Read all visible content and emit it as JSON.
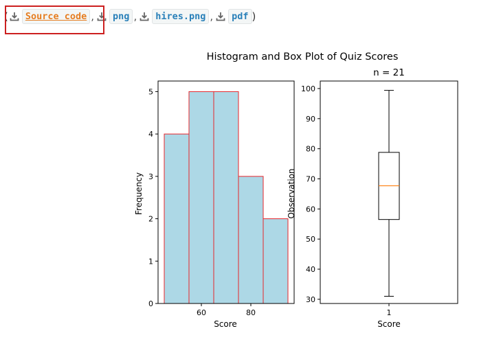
{
  "downloads": {
    "open_paren": "(",
    "close_paren": ")",
    "separator": ",",
    "icon": "download-icon",
    "items": [
      {
        "label": "Source code",
        "active": true
      },
      {
        "label": "png"
      },
      {
        "label": "hires.png"
      },
      {
        "label": "pdf"
      }
    ]
  },
  "colors": {
    "link": "#2980b9",
    "link_active": "#e67e22",
    "highlight_box": "#cc1f1f",
    "hist_fill": "#add8e6",
    "hist_edge": "#e8262b",
    "median": "#ff7f0e"
  },
  "chart_data": [
    {
      "type": "bar",
      "suptitle": "Histogram and Box Plot of Quiz Scores",
      "title": "",
      "xlabel": "Score",
      "ylabel": "Frequency",
      "bins": [
        [
          45,
          55
        ],
        [
          55,
          65
        ],
        [
          65,
          75
        ],
        [
          75,
          85
        ],
        [
          85,
          95
        ]
      ],
      "values": [
        4,
        5,
        5,
        3,
        2
      ],
      "xticks": [
        60,
        80
      ],
      "yticks": [
        0,
        1,
        2,
        3,
        4,
        5
      ],
      "xlim": [
        42.5,
        97.5
      ],
      "ylim": [
        0,
        5.25
      ]
    },
    {
      "type": "box",
      "title": "n = 21",
      "xlabel": "Score",
      "ylabel": "Observation",
      "category": "1",
      "whisker_low": 31,
      "q1": 56.5,
      "median": 67.7,
      "q3": 78.8,
      "whisker_high": 99.4,
      "yticks": [
        30,
        40,
        50,
        60,
        70,
        80,
        90,
        100
      ],
      "ylim": [
        28.6,
        102.5
      ]
    }
  ]
}
